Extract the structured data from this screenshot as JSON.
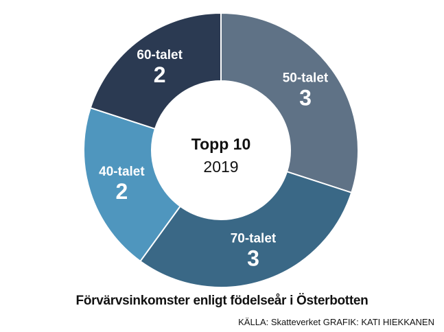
{
  "chart_data": {
    "type": "pie",
    "categories": [
      "50-talet",
      "70-talet",
      "40-talet",
      "60-talet"
    ],
    "values": [
      3,
      3,
      2,
      2
    ],
    "colors": [
      "#5f7286",
      "#3a6886",
      "#4f96be",
      "#2b3a52"
    ],
    "center_title": "Topp 10",
    "center_subtitle": "2019"
  },
  "caption": "Förvärvsinkomster enligt födelseår i Österbotten",
  "credit": "KÄLLA: Skatteverket GRAFIK: KATI HIEKKANEN"
}
